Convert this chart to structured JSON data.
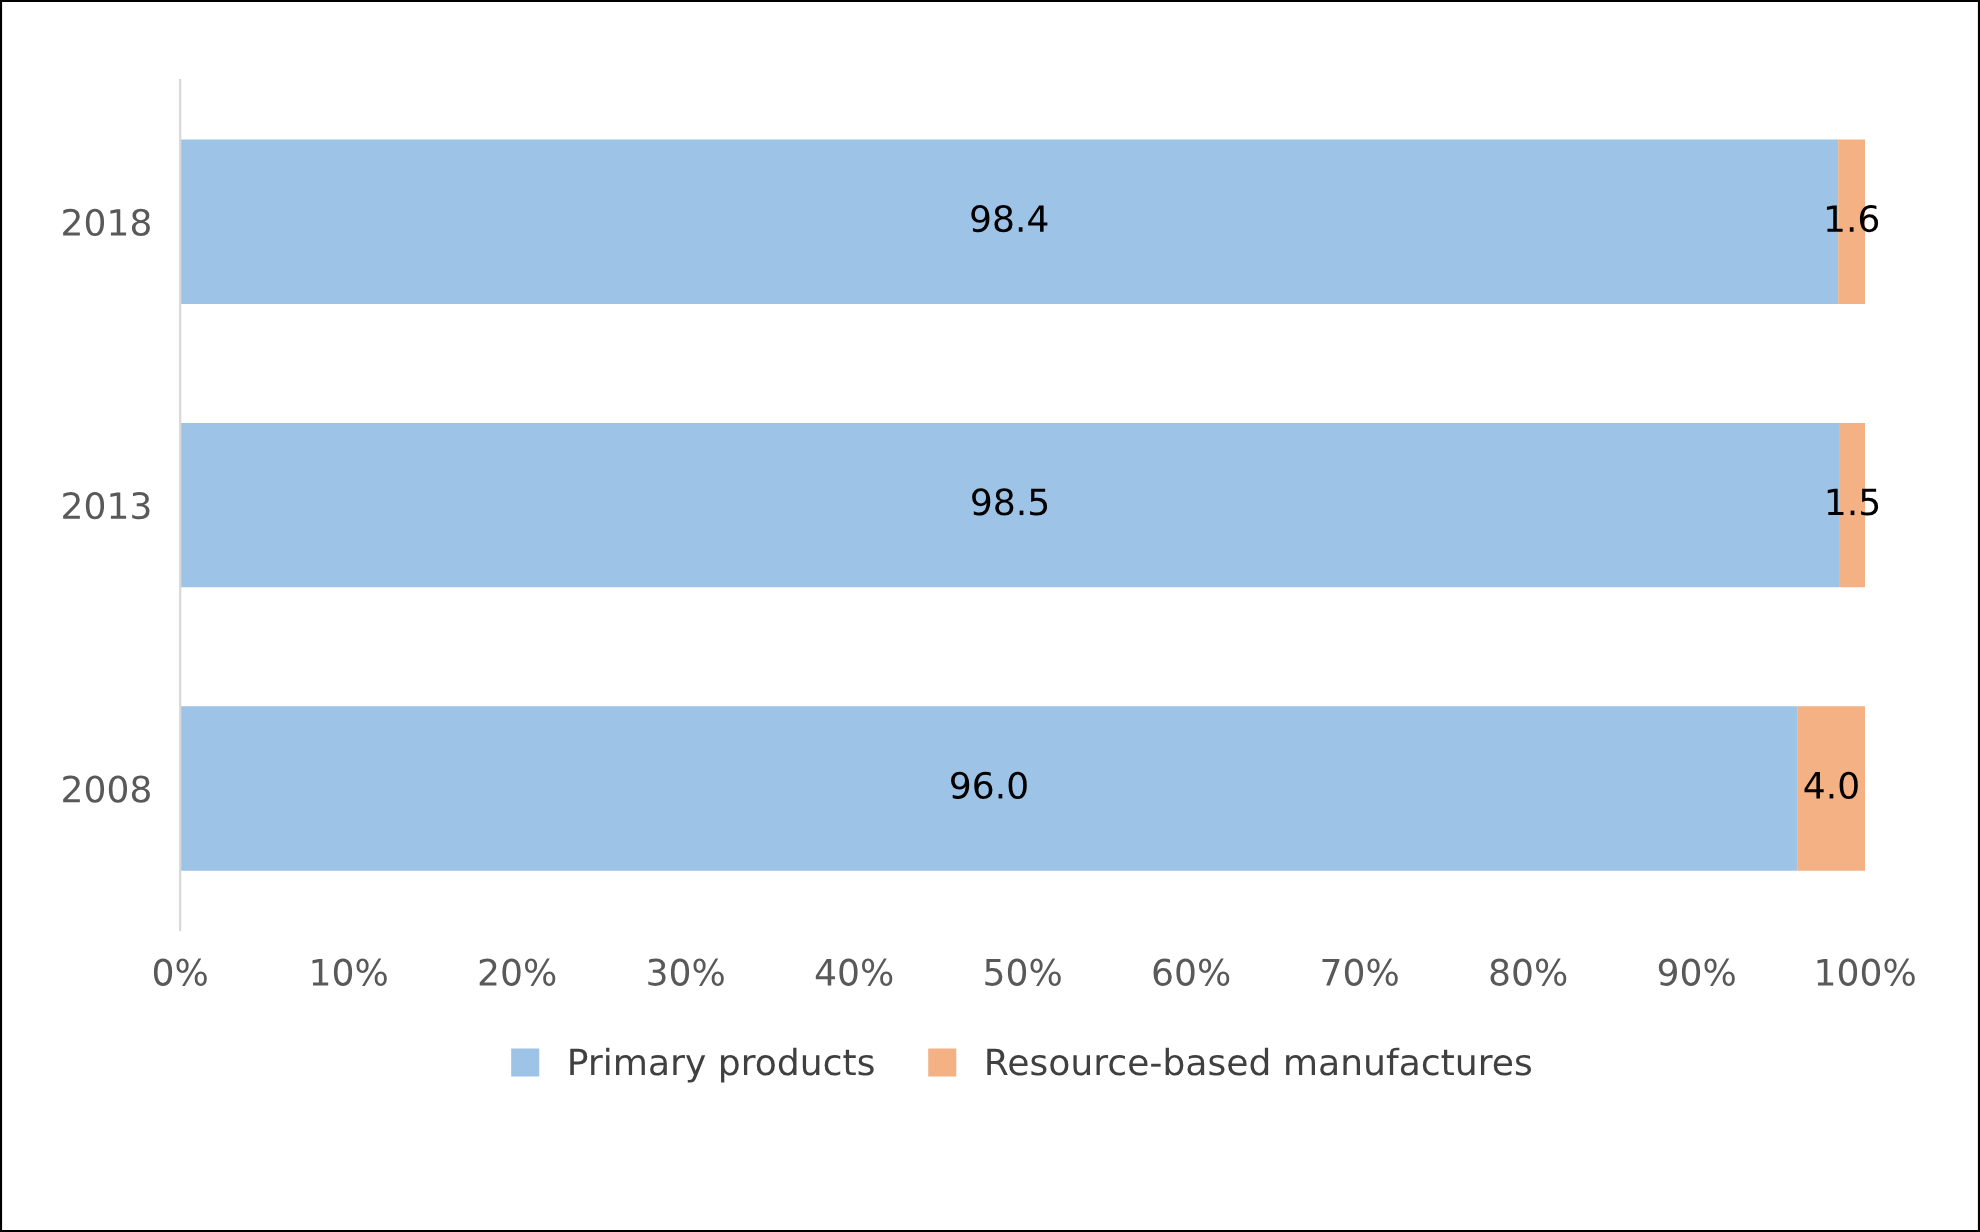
{
  "chart_data": {
    "type": "bar",
    "orientation": "horizontal",
    "stacked": true,
    "categories": [
      "2018",
      "2013",
      "2008"
    ],
    "series": [
      {
        "name": "Primary products",
        "color": "#9dc3e6",
        "values": [
          98.4,
          98.5,
          96.0
        ],
        "value_labels": [
          "98.4",
          "98.5",
          "96.0"
        ]
      },
      {
        "name": "Resource-based manufactures",
        "color": "#f4b183",
        "values": [
          1.6,
          1.5,
          4.0
        ],
        "value_labels": [
          "1.6",
          "1.5",
          "4.0"
        ]
      }
    ],
    "xlim": [
      0,
      100
    ],
    "xticks": [
      {
        "value": 0,
        "label": "0%"
      },
      {
        "value": 10,
        "label": "10%"
      },
      {
        "value": 20,
        "label": "20%"
      },
      {
        "value": 30,
        "label": "30%"
      },
      {
        "value": 40,
        "label": "40%"
      },
      {
        "value": 50,
        "label": "50%"
      },
      {
        "value": 60,
        "label": "60%"
      },
      {
        "value": 70,
        "label": "70%"
      },
      {
        "value": 80,
        "label": "80%"
      },
      {
        "value": 90,
        "label": "90%"
      },
      {
        "value": 100,
        "label": "100%"
      }
    ],
    "grid": false,
    "legend": "bottom"
  }
}
